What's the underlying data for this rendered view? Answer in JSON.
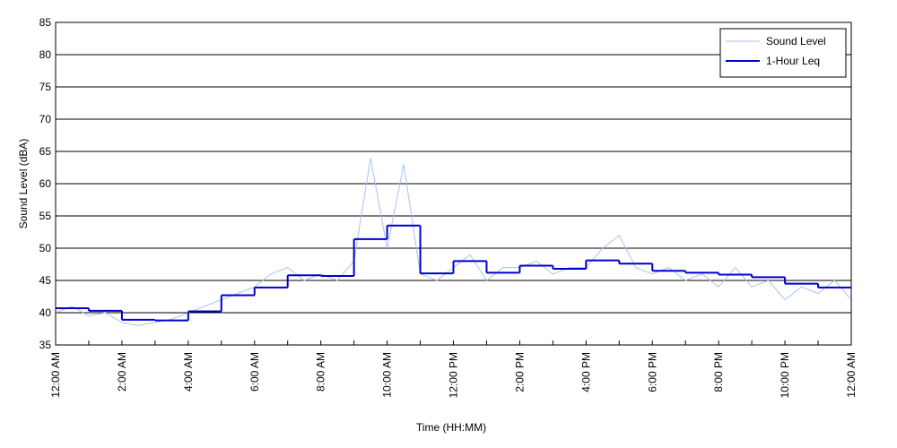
{
  "chart_data": {
    "type": "line",
    "xlabel": "Time (HH:MM)",
    "ylabel": "Sound Level (dBA)",
    "xlim": [
      0,
      24
    ],
    "ylim": [
      35,
      85
    ],
    "yticks": [
      35,
      40,
      45,
      50,
      55,
      60,
      65,
      70,
      75,
      80,
      85
    ],
    "xticks": [
      {
        "value": 0,
        "label": "12:00 AM"
      },
      {
        "value": 2,
        "label": "2:00 AM"
      },
      {
        "value": 4,
        "label": "4:00 AM"
      },
      {
        "value": 6,
        "label": "6:00 AM"
      },
      {
        "value": 8,
        "label": "8:00 AM"
      },
      {
        "value": 10,
        "label": "10:00 AM"
      },
      {
        "value": 12,
        "label": "12:00 PM"
      },
      {
        "value": 14,
        "label": "2:00 PM"
      },
      {
        "value": 16,
        "label": "4:00 PM"
      },
      {
        "value": 18,
        "label": "6:00 PM"
      },
      {
        "value": 20,
        "label": "8:00 PM"
      },
      {
        "value": 22,
        "label": "10:00 PM"
      },
      {
        "value": 24,
        "label": "12:00 AM"
      }
    ],
    "xminor_ticks": [
      1,
      3,
      5,
      7,
      9,
      11,
      13,
      15,
      17,
      19,
      21,
      23
    ],
    "grid": true,
    "legend": "upper right",
    "series": [
      {
        "name": "Sound Level",
        "color": "#a9c2f3",
        "style": "line",
        "x": [
          0,
          0.5,
          1,
          1.5,
          2,
          2.5,
          3,
          3.5,
          4,
          4.5,
          5,
          5.5,
          6,
          6.5,
          7,
          7.5,
          8,
          8.5,
          9,
          9.5,
          10,
          10.5,
          11,
          11.5,
          12,
          12.5,
          13,
          13.5,
          14,
          14.5,
          15,
          15.5,
          16,
          16.5,
          17,
          17.5,
          18,
          18.5,
          19,
          19.5,
          20,
          20.5,
          21,
          21.5,
          22,
          22.5,
          23,
          23.5,
          24
        ],
        "values": [
          40,
          41,
          39.5,
          40,
          38.5,
          38,
          38.5,
          39,
          40,
          41,
          42,
          43,
          44,
          46,
          47,
          45,
          46,
          45,
          48,
          64,
          50,
          63,
          46,
          45,
          47,
          49,
          45,
          47,
          47,
          48,
          46,
          47,
          47,
          50,
          52,
          47,
          46,
          47,
          45,
          46,
          44,
          47,
          44,
          45,
          42,
          44,
          43,
          45,
          42
        ]
      },
      {
        "name": "1-Hour Leq",
        "color": "#0000cc",
        "style": "steps",
        "x": [
          0,
          1,
          2,
          3,
          4,
          5,
          6,
          7,
          8,
          9,
          10,
          11,
          12,
          13,
          14,
          15,
          16,
          17,
          18,
          19,
          20,
          21,
          22,
          23
        ],
        "values": [
          40.7,
          40.3,
          38.9,
          38.8,
          40.2,
          42.7,
          43.9,
          45.8,
          45.7,
          51.4,
          53.5,
          46.1,
          48.0,
          46.2,
          47.3,
          46.8,
          48.1,
          47.6,
          46.5,
          46.2,
          45.9,
          45.5,
          44.5,
          43.9
        ]
      }
    ]
  }
}
